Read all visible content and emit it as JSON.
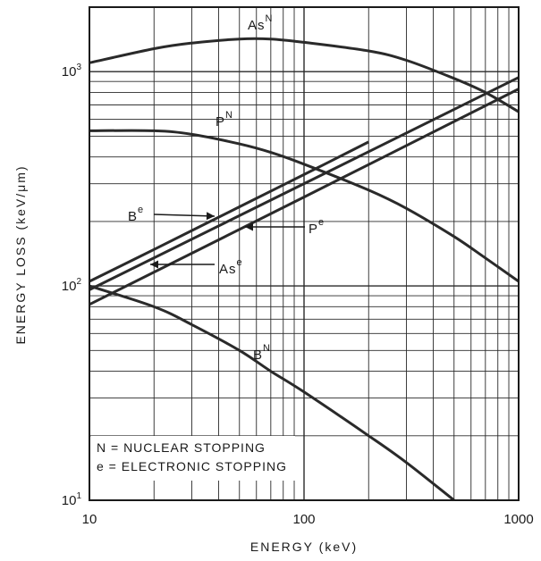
{
  "chart_data": {
    "type": "line",
    "xlabel": "ENERGY (keV)",
    "ylabel": "ENERGY LOSS (keV/μm)",
    "x_scale": "log",
    "y_scale": "log",
    "xlim": [
      10,
      1000
    ],
    "ylim": [
      10,
      2000
    ],
    "grid": true,
    "x_ticks": [
      {
        "value": 10,
        "label": "10"
      },
      {
        "value": 100,
        "label": "100"
      },
      {
        "value": 1000,
        "label": "1000"
      }
    ],
    "y_ticks": [
      {
        "value": 10,
        "base": "10",
        "exp": "1"
      },
      {
        "value": 100,
        "base": "10",
        "exp": "2"
      },
      {
        "value": 1000,
        "base": "10",
        "exp": "3"
      }
    ],
    "series": [
      {
        "name": "As",
        "sup": "N",
        "color": "#2a2a2a",
        "x": [
          10,
          20,
          30,
          50,
          70,
          100,
          200,
          300,
          500,
          700,
          1000
        ],
        "y": [
          1100,
          1280,
          1360,
          1420,
          1420,
          1370,
          1250,
          1130,
          930,
          800,
          650
        ]
      },
      {
        "name": "P",
        "sup": "N",
        "color": "#2a2a2a",
        "x": [
          10,
          20,
          30,
          50,
          70,
          100,
          200,
          300,
          500,
          700,
          1000
        ],
        "y": [
          530,
          530,
          510,
          460,
          420,
          370,
          280,
          230,
          170,
          135,
          105
        ]
      },
      {
        "name": "B",
        "sup": "N",
        "color": "#2a2a2a",
        "x": [
          10,
          20,
          30,
          50,
          70,
          100,
          200,
          300,
          500
        ],
        "y": [
          100,
          80,
          66,
          50,
          40,
          32,
          20,
          15,
          10
        ]
      },
      {
        "name": "B",
        "sup": "e",
        "color": "#2a2a2a",
        "x": [
          10,
          20,
          50,
          100,
          200
        ],
        "y": [
          105,
          148,
          234,
          331,
          470
        ]
      },
      {
        "name": "As",
        "sup": "e",
        "color": "#2a2a2a",
        "x": [
          10,
          100,
          1000
        ],
        "y": [
          96,
          300,
          940
        ]
      },
      {
        "name": "P",
        "sup": "e",
        "color": "#2a2a2a",
        "x": [
          10,
          100,
          1000
        ],
        "y": [
          82,
          260,
          830
        ]
      }
    ],
    "annotations": [
      {
        "label": "N = NUCLEAR STOPPING"
      },
      {
        "label": "e = ELECTRONIC STOPPING"
      }
    ]
  }
}
